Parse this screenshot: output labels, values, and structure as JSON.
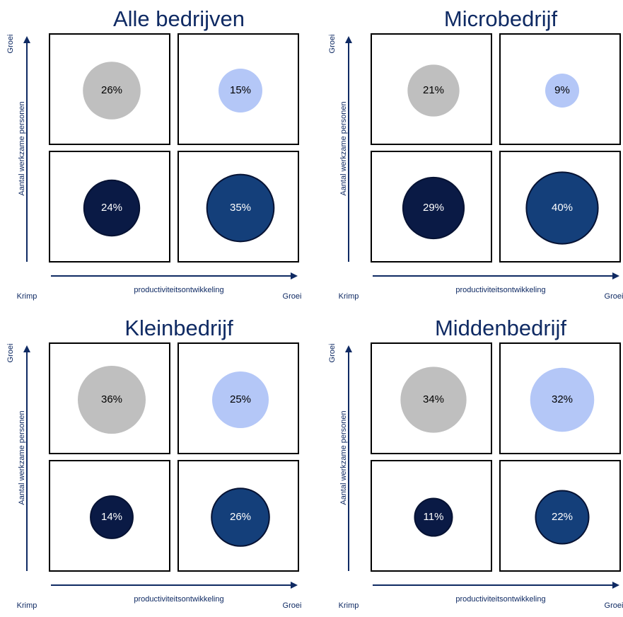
{
  "chart_data": [
    {
      "type": "quadrant-bubble",
      "title": "Alle bedrijven",
      "x_label": "productiviteitsontwikkeling",
      "y_label": "Aantal werkzame personen",
      "x_low": "Krimp",
      "x_high": "Groei",
      "y_high": "Groei",
      "values": [
        26,
        15,
        24,
        35
      ],
      "value_labels": [
        "26%",
        "15%",
        "24%",
        "35%"
      ],
      "colors": [
        "#bfbfbf",
        "#b4c7f7",
        "#0a1a45",
        "#143f7a"
      ]
    },
    {
      "type": "quadrant-bubble",
      "title": "Microbedrijf",
      "x_label": "productiviteitsontwikkeling",
      "y_label": "Aantal werkzame personen",
      "x_low": "Krimp",
      "x_high": "Groei",
      "y_high": "Groei",
      "values": [
        21,
        9,
        29,
        40
      ],
      "value_labels": [
        "21%",
        "9%",
        "29%",
        "40%"
      ],
      "colors": [
        "#bfbfbf",
        "#b4c7f7",
        "#0a1a45",
        "#143f7a"
      ]
    },
    {
      "type": "quadrant-bubble",
      "title": "Kleinbedrijf",
      "x_label": "productiviteitsontwikkeling",
      "y_label": "Aantal werkzame personen",
      "x_low": "Krimp",
      "x_high": "Groei",
      "y_high": "Groei",
      "values": [
        36,
        25,
        14,
        26
      ],
      "value_labels": [
        "36%",
        "25%",
        "14%",
        "26%"
      ],
      "colors": [
        "#bfbfbf",
        "#b4c7f7",
        "#0a1a45",
        "#143f7a"
      ]
    },
    {
      "type": "quadrant-bubble",
      "title": "Middenbedrijf",
      "x_label": "productiviteitsontwikkeling",
      "y_label": "Aantal werkzame personen",
      "x_low": "Krimp",
      "x_high": "Groei",
      "y_high": "Groei",
      "values": [
        34,
        32,
        11,
        22
      ],
      "value_labels": [
        "34%",
        "32%",
        "11%",
        "22%"
      ],
      "colors": [
        "#bfbfbf",
        "#b4c7f7",
        "#0a1a45",
        "#143f7a"
      ]
    }
  ]
}
